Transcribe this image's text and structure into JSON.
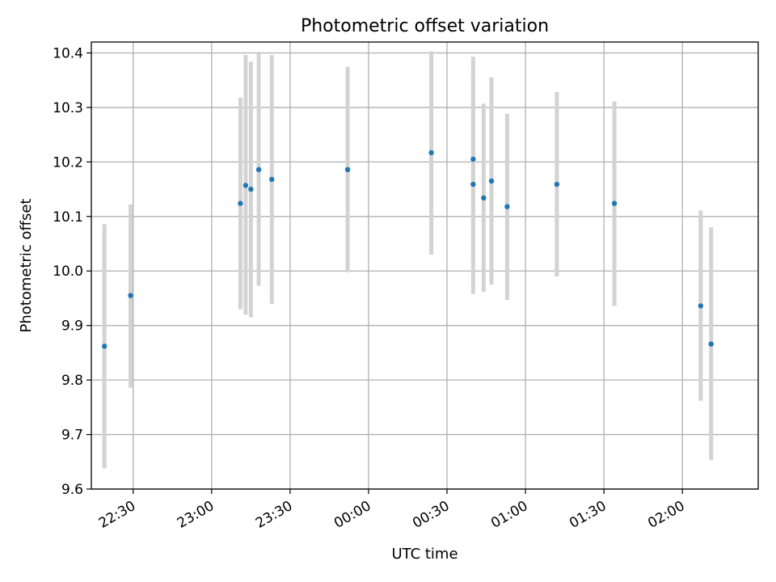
{
  "chart_data": {
    "type": "scatter",
    "title": "Photometric offset variation",
    "xlabel": "UTC time",
    "ylabel": "Photometric offset",
    "grid": true,
    "x_unit": "UTC time (HH:MM, spanning midnight)",
    "xlim": [
      "22:14",
      "02:29"
    ],
    "ylim": [
      9.6,
      10.42
    ],
    "x_ticks": [
      "22:30",
      "23:00",
      "23:30",
      "00:00",
      "00:30",
      "01:00",
      "01:30",
      "02:00"
    ],
    "y_ticks": [
      "9.6",
      "9.7",
      "9.8",
      "9.9",
      "10.0",
      "10.1",
      "10.2",
      "10.3",
      "10.4"
    ],
    "colors": {
      "point": "#1f77b4",
      "errorbar": "#d3d3d3",
      "grid": "#b0b0b0"
    },
    "series": [
      {
        "points": [
          {
            "x": "22:19",
            "y": 9.862,
            "ymin": 9.638,
            "ymax": 10.086
          },
          {
            "x": "22:29",
            "y": 9.955,
            "ymin": 9.786,
            "ymax": 10.122
          },
          {
            "x": "23:11",
            "y": 10.124,
            "ymin": 9.93,
            "ymax": 10.318
          },
          {
            "x": "23:13",
            "y": 10.157,
            "ymin": 9.92,
            "ymax": 10.396
          },
          {
            "x": "23:15",
            "y": 10.15,
            "ymin": 9.915,
            "ymax": 10.384
          },
          {
            "x": "23:18",
            "y": 10.186,
            "ymin": 9.973,
            "ymax": 10.399
          },
          {
            "x": "23:23",
            "y": 10.168,
            "ymin": 9.94,
            "ymax": 10.396
          },
          {
            "x": "23:52",
            "y": 10.186,
            "ymin": 9.998,
            "ymax": 10.375
          },
          {
            "x": "00:24",
            "y": 10.217,
            "ymin": 10.03,
            "ymax": 10.403
          },
          {
            "x": "00:40",
            "y": 10.205,
            "ymin": 10.015,
            "ymax": 10.393
          },
          {
            "x": "00:40",
            "y": 10.159,
            "ymin": 9.958,
            "ymax": 10.36
          },
          {
            "x": "00:44",
            "y": 10.134,
            "ymin": 9.962,
            "ymax": 10.307
          },
          {
            "x": "00:47",
            "y": 10.165,
            "ymin": 9.975,
            "ymax": 10.355
          },
          {
            "x": "00:53",
            "y": 10.118,
            "ymin": 9.947,
            "ymax": 10.288
          },
          {
            "x": "01:12",
            "y": 10.159,
            "ymin": 9.99,
            "ymax": 10.328
          },
          {
            "x": "01:34",
            "y": 10.124,
            "ymin": 9.936,
            "ymax": 10.311
          },
          {
            "x": "02:07",
            "y": 9.936,
            "ymin": 9.762,
            "ymax": 10.111
          },
          {
            "x": "02:11",
            "y": 9.866,
            "ymin": 9.653,
            "ymax": 10.08
          }
        ]
      }
    ]
  }
}
